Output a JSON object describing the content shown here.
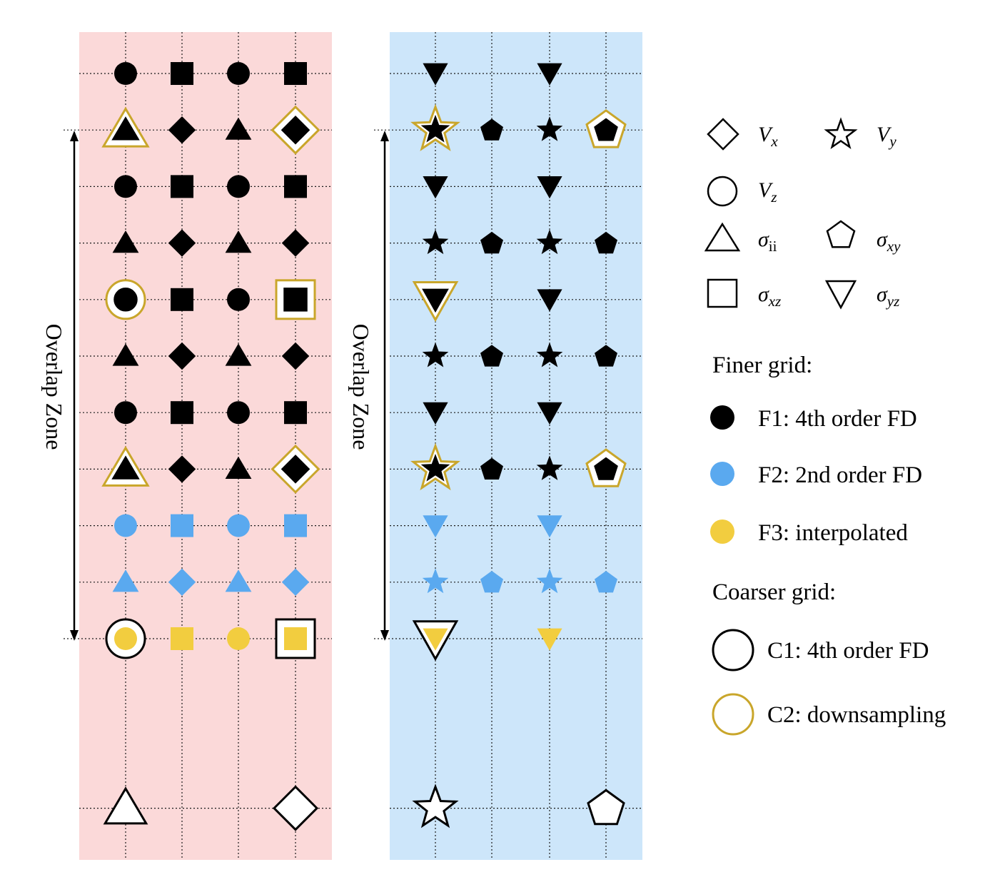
{
  "colors": {
    "left_panel": "#fbd9d9",
    "right_panel": "#cde6fa",
    "f1": "#000000",
    "f2": "#5aa9ef",
    "f3": "#f2cd3f",
    "c2_ring": "#c9a62b"
  },
  "overlap_label": "Overlap Zone",
  "symbols": [
    {
      "id": "vx",
      "shape": "diamond",
      "name": "V",
      "sub": "x"
    },
    {
      "id": "vy",
      "shape": "star",
      "name": "V",
      "sub": "y"
    },
    {
      "id": "vz",
      "shape": "circle",
      "name": "V",
      "sub": "z"
    },
    {
      "id": "sii",
      "shape": "triangle",
      "name": "σ",
      "sub": "ii"
    },
    {
      "id": "sxy",
      "shape": "pentagon",
      "name": "σ",
      "sub": "xy"
    },
    {
      "id": "sxz",
      "shape": "square",
      "name": "σ",
      "sub": "xz"
    },
    {
      "id": "syz",
      "shape": "triangle-down",
      "name": "σ",
      "sub": "yz"
    }
  ],
  "legend": {
    "finer_title": "Finer grid:",
    "f1": "F1: 4th order FD",
    "f2": "F2: 2nd order FD",
    "f3": "F3: interpolated",
    "coarser_title": "Coarser grid:",
    "c1": "C1: 4th order FD",
    "c2": "C2: downsampling"
  },
  "left_grid": [
    {
      "row": 0,
      "marks": [
        {
          "shape": "circle",
          "fill": "f1"
        },
        {
          "shape": "square",
          "fill": "f1"
        },
        {
          "shape": "circle",
          "fill": "f1"
        },
        {
          "shape": "square",
          "fill": "f1"
        }
      ]
    },
    {
      "row": 1,
      "marks": [
        {
          "shape": "triangle",
          "fill": "f1",
          "ring": "c2"
        },
        {
          "shape": "diamond",
          "fill": "f1"
        },
        {
          "shape": "triangle",
          "fill": "f1"
        },
        {
          "shape": "diamond",
          "fill": "f1",
          "ring": "c2"
        }
      ]
    },
    {
      "row": 2,
      "marks": [
        {
          "shape": "circle",
          "fill": "f1"
        },
        {
          "shape": "square",
          "fill": "f1"
        },
        {
          "shape": "circle",
          "fill": "f1"
        },
        {
          "shape": "square",
          "fill": "f1"
        }
      ]
    },
    {
      "row": 3,
      "marks": [
        {
          "shape": "triangle",
          "fill": "f1"
        },
        {
          "shape": "diamond",
          "fill": "f1"
        },
        {
          "shape": "triangle",
          "fill": "f1"
        },
        {
          "shape": "diamond",
          "fill": "f1"
        }
      ]
    },
    {
      "row": 4,
      "marks": [
        {
          "shape": "circle",
          "fill": "f1",
          "ring": "c2"
        },
        {
          "shape": "square",
          "fill": "f1"
        },
        {
          "shape": "circle",
          "fill": "f1"
        },
        {
          "shape": "square",
          "fill": "f1",
          "ring": "c2"
        }
      ]
    },
    {
      "row": 5,
      "marks": [
        {
          "shape": "triangle",
          "fill": "f1"
        },
        {
          "shape": "diamond",
          "fill": "f1"
        },
        {
          "shape": "triangle",
          "fill": "f1"
        },
        {
          "shape": "diamond",
          "fill": "f1"
        }
      ]
    },
    {
      "row": 6,
      "marks": [
        {
          "shape": "circle",
          "fill": "f1"
        },
        {
          "shape": "square",
          "fill": "f1"
        },
        {
          "shape": "circle",
          "fill": "f1"
        },
        {
          "shape": "square",
          "fill": "f1"
        }
      ]
    },
    {
      "row": 7,
      "marks": [
        {
          "shape": "triangle",
          "fill": "f1",
          "ring": "c2"
        },
        {
          "shape": "diamond",
          "fill": "f1"
        },
        {
          "shape": "triangle",
          "fill": "f1"
        },
        {
          "shape": "diamond",
          "fill": "f1",
          "ring": "c2"
        }
      ]
    },
    {
      "row": 8,
      "marks": [
        {
          "shape": "circle",
          "fill": "f2"
        },
        {
          "shape": "square",
          "fill": "f2"
        },
        {
          "shape": "circle",
          "fill": "f2"
        },
        {
          "shape": "square",
          "fill": "f2"
        }
      ]
    },
    {
      "row": 9,
      "marks": [
        {
          "shape": "triangle",
          "fill": "f2"
        },
        {
          "shape": "diamond",
          "fill": "f2"
        },
        {
          "shape": "triangle",
          "fill": "f2"
        },
        {
          "shape": "diamond",
          "fill": "f2"
        }
      ]
    },
    {
      "row": 10,
      "marks": [
        {
          "shape": "circle",
          "fill": "f3",
          "ring": "c1"
        },
        {
          "shape": "square",
          "fill": "f3"
        },
        {
          "shape": "circle",
          "fill": "f3"
        },
        {
          "shape": "square",
          "fill": "f3",
          "ring": "c1"
        }
      ]
    },
    {
      "row": 13,
      "marks": [
        {
          "shape": "triangle",
          "fill": "none",
          "ring": "c1"
        },
        null,
        null,
        {
          "shape": "diamond",
          "fill": "none",
          "ring": "c1"
        }
      ]
    }
  ],
  "right_grid": [
    {
      "row": 0,
      "marks": [
        {
          "shape": "triangle-down",
          "fill": "f1"
        },
        null,
        {
          "shape": "triangle-down",
          "fill": "f1"
        },
        null
      ]
    },
    {
      "row": 1,
      "marks": [
        {
          "shape": "star",
          "fill": "f1",
          "ring": "c2"
        },
        {
          "shape": "pentagon",
          "fill": "f1"
        },
        {
          "shape": "star",
          "fill": "f1"
        },
        {
          "shape": "pentagon",
          "fill": "f1",
          "ring": "c2"
        }
      ]
    },
    {
      "row": 2,
      "marks": [
        {
          "shape": "triangle-down",
          "fill": "f1"
        },
        null,
        {
          "shape": "triangle-down",
          "fill": "f1"
        },
        null
      ]
    },
    {
      "row": 3,
      "marks": [
        {
          "shape": "star",
          "fill": "f1"
        },
        {
          "shape": "pentagon",
          "fill": "f1"
        },
        {
          "shape": "star",
          "fill": "f1"
        },
        {
          "shape": "pentagon",
          "fill": "f1"
        }
      ]
    },
    {
      "row": 4,
      "marks": [
        {
          "shape": "triangle-down",
          "fill": "f1",
          "ring": "c2"
        },
        null,
        {
          "shape": "triangle-down",
          "fill": "f1"
        },
        null
      ]
    },
    {
      "row": 5,
      "marks": [
        {
          "shape": "star",
          "fill": "f1"
        },
        {
          "shape": "pentagon",
          "fill": "f1"
        },
        {
          "shape": "star",
          "fill": "f1"
        },
        {
          "shape": "pentagon",
          "fill": "f1"
        }
      ]
    },
    {
      "row": 6,
      "marks": [
        {
          "shape": "triangle-down",
          "fill": "f1"
        },
        null,
        {
          "shape": "triangle-down",
          "fill": "f1"
        },
        null
      ]
    },
    {
      "row": 7,
      "marks": [
        {
          "shape": "star",
          "fill": "f1",
          "ring": "c2"
        },
        {
          "shape": "pentagon",
          "fill": "f1"
        },
        {
          "shape": "star",
          "fill": "f1"
        },
        {
          "shape": "pentagon",
          "fill": "f1",
          "ring": "c2"
        }
      ]
    },
    {
      "row": 8,
      "marks": [
        {
          "shape": "triangle-down",
          "fill": "f2"
        },
        null,
        {
          "shape": "triangle-down",
          "fill": "f2"
        },
        null
      ]
    },
    {
      "row": 9,
      "marks": [
        {
          "shape": "star",
          "fill": "f2"
        },
        {
          "shape": "pentagon",
          "fill": "f2"
        },
        {
          "shape": "star",
          "fill": "f2"
        },
        {
          "shape": "pentagon",
          "fill": "f2"
        }
      ]
    },
    {
      "row": 10,
      "marks": [
        {
          "shape": "triangle-down",
          "fill": "f3",
          "ring": "c1"
        },
        null,
        {
          "shape": "triangle-down",
          "fill": "f3"
        },
        null
      ]
    },
    {
      "row": 13,
      "marks": [
        {
          "shape": "star",
          "fill": "none",
          "ring": "c1"
        },
        null,
        null,
        {
          "shape": "pentagon",
          "fill": "none",
          "ring": "c1"
        }
      ]
    }
  ]
}
